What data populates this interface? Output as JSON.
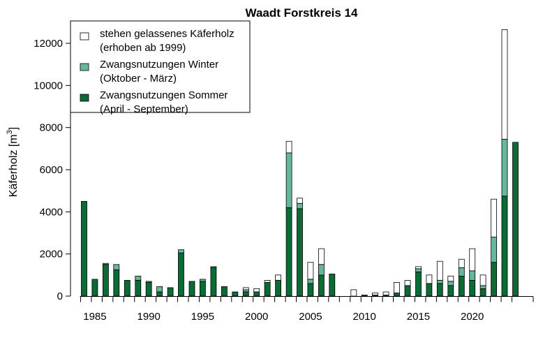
{
  "chart_data": {
    "type": "bar",
    "stacked": true,
    "title": "Waadt Forstkreis 14",
    "ylabel": "Käferholz [m",
    "ylabel_superscript": "3",
    "ylabel_suffix": "]",
    "xlabel": "",
    "x": [
      1984,
      1985,
      1986,
      1987,
      1988,
      1989,
      1990,
      1991,
      1992,
      1993,
      1994,
      1995,
      1996,
      1997,
      1998,
      1999,
      2000,
      2001,
      2002,
      2003,
      2004,
      2005,
      2006,
      2007,
      2008,
      2009,
      2010,
      2011,
      2012,
      2013,
      2014,
      2015,
      2016,
      2017,
      2018,
      2019,
      2020,
      2021,
      2022,
      2023,
      2024
    ],
    "xticks": [
      1985,
      1990,
      1995,
      2000,
      2005,
      2010,
      2015,
      2020
    ],
    "ylim": [
      0,
      13000
    ],
    "yticks": [
      0,
      2000,
      4000,
      6000,
      8000,
      10000,
      12000
    ],
    "grid": false,
    "legend_position": "top-left",
    "series": [
      {
        "name": "Zwangsnutzungen Sommer",
        "name_line2": "(April - September)",
        "color": "#0b6b35",
        "values": [
          4500,
          800,
          1500,
          1250,
          750,
          750,
          650,
          200,
          400,
          2050,
          700,
          700,
          1350,
          450,
          200,
          200,
          200,
          650,
          750,
          4200,
          4150,
          600,
          1000,
          1050,
          0,
          0,
          50,
          50,
          50,
          150,
          500,
          1150,
          600,
          600,
          500,
          950,
          750,
          350,
          1600,
          4750,
          7300
        ]
      },
      {
        "name": "Zwangsnutzungen Winter",
        "name_line2": "(Oktober - März)",
        "color": "#67b89a",
        "values": [
          0,
          0,
          50,
          250,
          0,
          200,
          50,
          250,
          0,
          150,
          0,
          100,
          50,
          0,
          0,
          100,
          0,
          0,
          0,
          2600,
          250,
          200,
          500,
          0,
          0,
          0,
          0,
          0,
          0,
          0,
          0,
          150,
          0,
          150,
          200,
          400,
          450,
          150,
          1200,
          2700,
          0
        ]
      },
      {
        "name": "stehen gelassenes Käferholz",
        "name_line2": "(erhoben ab 1999)",
        "color": "#ffffff",
        "values": [
          0,
          0,
          0,
          0,
          0,
          0,
          0,
          0,
          0,
          0,
          0,
          0,
          0,
          0,
          0,
          100,
          150,
          100,
          250,
          550,
          250,
          800,
          750,
          0,
          0,
          300,
          0,
          100,
          150,
          500,
          250,
          100,
          400,
          900,
          250,
          400,
          1050,
          500,
          1800,
          5200,
          0
        ]
      }
    ],
    "legend_order": [
      2,
      1,
      0
    ],
    "colors": {
      "axis": "#000000",
      "bar_outline": "#000000",
      "background": "#ffffff"
    }
  }
}
